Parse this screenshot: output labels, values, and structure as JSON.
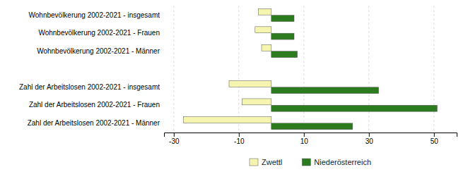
{
  "chart_data": {
    "type": "bar",
    "orientation": "horizontal",
    "categories": [
      "Wohnbevölkerung 2002-2021 - insgesamt",
      "Wohnbevölkerung 2002-2021 - Frauen",
      "Wohnbevölkerung 2002-2021 - Männer",
      null,
      "Zahl der Arbeitslosen 2002-2021 - insgesamt",
      "Zahl der Arbeitslosen 2002-2021 - Frauen",
      "Zahl der Arbeitslosen 2002-2021 - Männer"
    ],
    "series": [
      {
        "name": "Zwettl",
        "color": "#f5f5b0",
        "values": [
          -4,
          -5,
          -3,
          null,
          -13,
          -9,
          -27
        ]
      },
      {
        "name": "Niederösterreich",
        "color": "#2d7b1f",
        "values": [
          7,
          7,
          8,
          null,
          33,
          51,
          25
        ]
      }
    ],
    "xlim": [
      -33,
      57
    ],
    "xticks": [
      -30,
      -10,
      10,
      30,
      50
    ],
    "grid": true,
    "legend": "bottom"
  }
}
